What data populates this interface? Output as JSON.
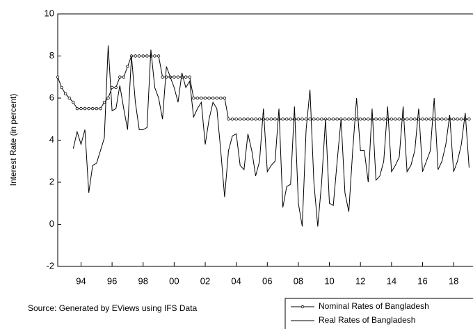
{
  "chart_data": {
    "type": "line",
    "ylabel": "Interest Rate (in percent)",
    "source": "Source: Generated by EViews using IFS Data",
    "x": [
      1992.5,
      1992.75,
      1993,
      1993.25,
      1993.5,
      1993.75,
      1994,
      1994.25,
      1994.5,
      1994.75,
      1995,
      1995.25,
      1995.5,
      1995.75,
      1996,
      1996.25,
      1996.5,
      1996.75,
      1997,
      1997.25,
      1997.5,
      1997.75,
      1998,
      1998.25,
      1998.5,
      1998.75,
      1999,
      1999.25,
      1999.5,
      1999.75,
      2000,
      2000.25,
      2000.5,
      2000.75,
      2001,
      2001.25,
      2001.5,
      2001.75,
      2002,
      2002.25,
      2002.5,
      2002.75,
      2003,
      2003.25,
      2003.5,
      2003.75,
      2004,
      2004.25,
      2004.5,
      2004.75,
      2005,
      2005.25,
      2005.5,
      2005.75,
      2006,
      2006.25,
      2006.5,
      2006.75,
      2007,
      2007.25,
      2007.5,
      2007.75,
      2008,
      2008.25,
      2008.5,
      2008.75,
      2009,
      2009.25,
      2009.5,
      2009.75,
      2010,
      2010.25,
      2010.5,
      2010.75,
      2011,
      2011.25,
      2011.5,
      2011.75,
      2012,
      2012.25,
      2012.5,
      2012.75,
      2013,
      2013.25,
      2013.5,
      2013.75,
      2014,
      2014.25,
      2014.5,
      2014.75,
      2015,
      2015.25,
      2015.5,
      2015.75,
      2016,
      2016.25,
      2016.5,
      2016.75,
      2017,
      2017.25,
      2017.5,
      2017.75,
      2018,
      2018.25,
      2018.5,
      2018.75,
      2019
    ],
    "series": [
      {
        "name": "Nominal Rates of Bangladesh",
        "color": "#000000",
        "marker": "circle",
        "values": [
          7,
          6.5,
          6.2,
          6,
          5.8,
          5.5,
          5.5,
          5.5,
          5.5,
          5.5,
          5.5,
          5.5,
          5.8,
          6,
          6.5,
          6.5,
          7,
          7,
          7.5,
          8,
          8,
          8,
          8,
          8,
          8,
          8,
          8,
          7,
          7,
          7,
          7,
          7,
          7,
          7,
          7,
          6,
          6,
          6,
          6,
          6,
          6,
          6,
          6,
          6,
          5,
          5,
          5,
          5,
          5,
          5,
          5,
          5,
          5,
          5,
          5,
          5,
          5,
          5,
          5,
          5,
          5,
          5,
          5,
          5,
          5,
          5,
          5,
          5,
          5,
          5,
          5,
          5,
          5,
          5,
          5,
          5,
          5,
          5,
          5,
          5,
          5,
          5,
          5,
          5,
          5,
          5,
          5,
          5,
          5,
          5,
          5,
          5,
          5,
          5,
          5,
          5,
          5,
          5,
          5,
          5,
          5,
          5,
          5,
          5,
          5,
          5,
          5
        ]
      },
      {
        "name": "Real Rates of Bangladesh",
        "color": "#000000",
        "values": [
          null,
          null,
          null,
          null,
          3.6,
          4.4,
          3.8,
          4.5,
          1.5,
          2.8,
          2.9,
          3.5,
          4.1,
          8.5,
          5.4,
          5.5,
          6.6,
          5.5,
          4.5,
          8.0,
          5.8,
          4.5,
          4.5,
          4.6,
          8.3,
          6.5,
          6.0,
          5.0,
          7.5,
          7.0,
          6.5,
          5.8,
          7.2,
          6.5,
          6.8,
          5.1,
          5.5,
          5.8,
          3.8,
          5.0,
          5.8,
          5.5,
          3.5,
          1.3,
          3.5,
          4.2,
          4.3,
          2.8,
          2.6,
          4.3,
          3.5,
          2.3,
          3.0,
          5.5,
          2.5,
          2.8,
          3.0,
          5.5,
          0.8,
          1.8,
          1.9,
          5.6,
          1.0,
          -0.1,
          4.5,
          6.4,
          2.0,
          -0.1,
          2.0,
          5.0,
          1.0,
          0.9,
          3.0,
          5.0,
          1.5,
          0.6,
          3.5,
          6.0,
          3.5,
          3.5,
          2.0,
          5.5,
          2.1,
          2.3,
          3.0,
          5.6,
          2.5,
          2.8,
          3.2,
          5.6,
          2.5,
          2.8,
          3.5,
          5.5,
          2.5,
          3.0,
          3.5,
          6.0,
          2.6,
          3.0,
          3.8,
          5.2,
          2.5,
          3.0,
          3.8,
          5.3,
          2.7
        ]
      }
    ],
    "xlim": [
      1992.5,
      2019.25
    ],
    "xticks": [
      {
        "value": 1994,
        "label": "94"
      },
      {
        "value": 1996,
        "label": "96"
      },
      {
        "value": 1998,
        "label": "98"
      },
      {
        "value": 2000,
        "label": "00"
      },
      {
        "value": 2002,
        "label": "02"
      },
      {
        "value": 2004,
        "label": "04"
      },
      {
        "value": 2006,
        "label": "06"
      },
      {
        "value": 2008,
        "label": "08"
      },
      {
        "value": 2010,
        "label": "10"
      },
      {
        "value": 2012,
        "label": "12"
      },
      {
        "value": 2014,
        "label": "14"
      },
      {
        "value": 2016,
        "label": "16"
      },
      {
        "value": 2018,
        "label": "18"
      }
    ],
    "ylim": [
      -2,
      10
    ],
    "yticks": [
      -2,
      0,
      2,
      4,
      6,
      8,
      10
    ],
    "grid": false,
    "legend": "bottom-right"
  }
}
